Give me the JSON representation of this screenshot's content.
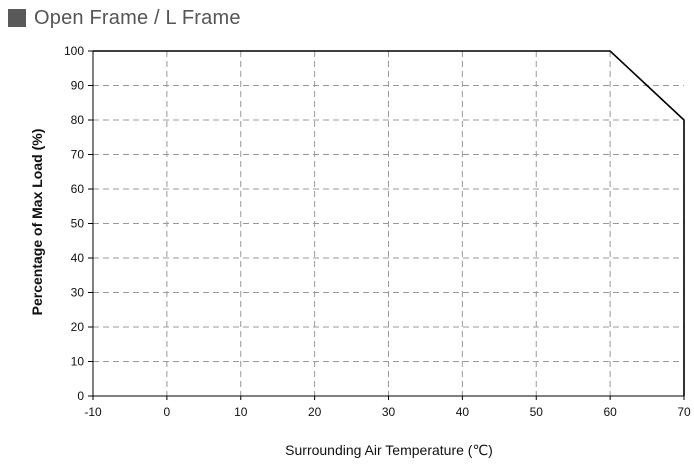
{
  "colors": {
    "title_square": "#595959",
    "title_text": "#555555",
    "grid": "#999999",
    "axis": "#000000",
    "series": "#000000"
  },
  "chart_data": {
    "type": "line",
    "title": "Open Frame / L Frame",
    "xlabel": "Surrounding Air Temperature (℃)",
    "ylabel": "Percentage of Max Load (%)",
    "xlim": [
      -10,
      70
    ],
    "ylim": [
      0,
      100
    ],
    "x_ticks": [
      -10,
      0,
      10,
      20,
      30,
      40,
      50,
      60,
      70
    ],
    "y_ticks": [
      0,
      10,
      20,
      30,
      40,
      50,
      60,
      70,
      80,
      90,
      100
    ],
    "grid": true,
    "grid_style": "dashed",
    "series": [
      {
        "x": [
          -10,
          60,
          70,
          70
        ],
        "y": [
          100,
          100,
          80,
          0
        ]
      }
    ]
  }
}
